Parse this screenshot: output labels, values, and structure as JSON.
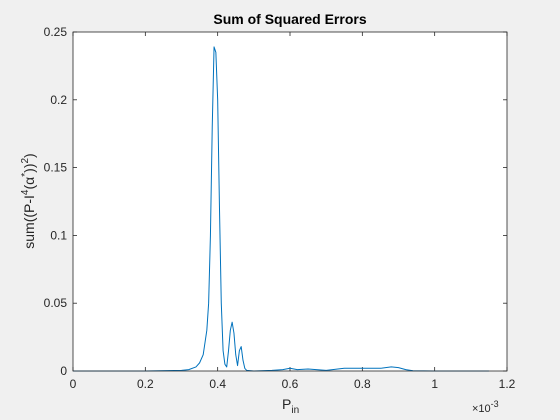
{
  "chart_data": {
    "type": "line",
    "title": "Sum of Squared Errors",
    "xlabel": {
      "main": "P",
      "sub": "in"
    },
    "ylabel": {
      "part1": "sum((P-I",
      "sup1": "4",
      "part2": "(α",
      "sup2": "*",
      "part3": "))",
      "sup3": "2",
      "part4": ")"
    },
    "x_exponent": {
      "prefix": "×10",
      "power": "-3"
    },
    "xlim": [
      0,
      1.2
    ],
    "ylim": [
      0,
      0.25
    ],
    "x_ticks": [
      0,
      0.2,
      0.4,
      0.6,
      0.8,
      1,
      1.2
    ],
    "x_tick_labels": [
      "0",
      "0.2",
      "0.4",
      "0.6",
      "0.8",
      "1",
      "1.2"
    ],
    "y_ticks": [
      0,
      0.05,
      0.1,
      0.15,
      0.2,
      0.25
    ],
    "y_tick_labels": [
      "0",
      "0.05",
      "0.1",
      "0.15",
      "0.2",
      "0.25"
    ],
    "grid": false,
    "box": true,
    "series": [
      {
        "color": "#0072bd",
        "x": [
          0,
          0.1,
          0.2,
          0.3,
          0.32,
          0.34,
          0.35,
          0.36,
          0.37,
          0.375,
          0.38,
          0.385,
          0.39,
          0.395,
          0.4,
          0.405,
          0.41,
          0.415,
          0.42,
          0.425,
          0.43,
          0.435,
          0.44,
          0.445,
          0.45,
          0.455,
          0.46,
          0.465,
          0.47,
          0.475,
          0.48,
          0.5,
          0.55,
          0.58,
          0.6,
          0.62,
          0.65,
          0.7,
          0.75,
          0.8,
          0.85,
          0.88,
          0.9,
          0.92,
          0.94,
          1.0,
          1.1,
          1.15
        ],
        "y": [
          0,
          0,
          0,
          0.0005,
          0.001,
          0.003,
          0.006,
          0.012,
          0.03,
          0.05,
          0.1,
          0.18,
          0.239,
          0.235,
          0.2,
          0.12,
          0.05,
          0.015,
          0.005,
          0.003,
          0.015,
          0.03,
          0.036,
          0.028,
          0.012,
          0.004,
          0.015,
          0.018,
          0.008,
          0.002,
          0.0005,
          0,
          0.0005,
          0.001,
          0.002,
          0.001,
          0.0015,
          0.0005,
          0.002,
          0.002,
          0.002,
          0.003,
          0.0025,
          0.001,
          0.0002,
          0,
          0,
          0
        ]
      }
    ]
  }
}
